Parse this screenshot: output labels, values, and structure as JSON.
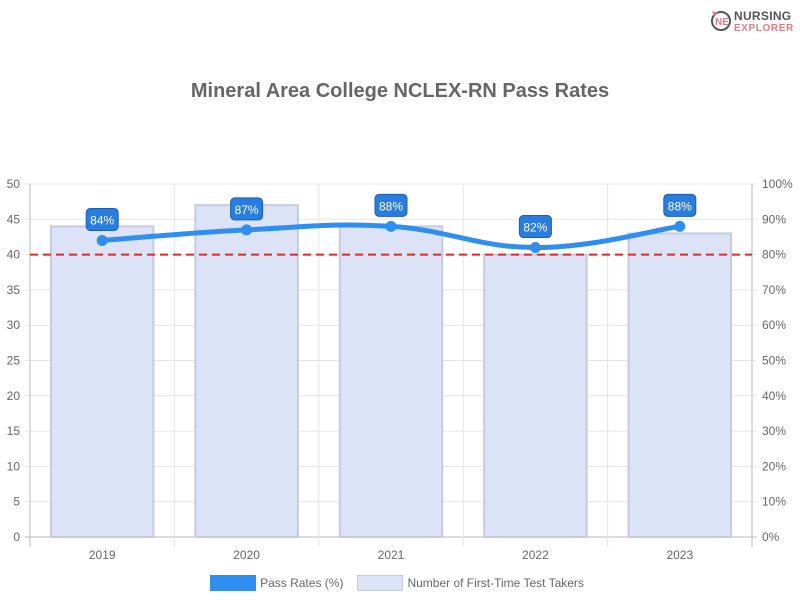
{
  "logo": {
    "line1": "NURSING",
    "line2": "EXPLORER"
  },
  "chart_data": {
    "type": "bar+line",
    "title": "Mineral Area College NCLEX-RN Pass Rates",
    "categories": [
      "2019",
      "2020",
      "2021",
      "2022",
      "2023"
    ],
    "series": [
      {
        "name": "Pass Rates (%)",
        "type": "line",
        "axis": "right",
        "values": [
          84,
          87,
          88,
          82,
          88
        ],
        "color": "#2f8ff0"
      },
      {
        "name": "Number of First-Time Test Takers",
        "type": "bar",
        "axis": "left",
        "values": [
          44,
          47,
          44,
          40,
          43
        ],
        "color": "#dce3f7"
      }
    ],
    "left_axis": {
      "ylim": [
        0,
        50
      ],
      "ticks": [
        "0",
        "5",
        "10",
        "15",
        "20",
        "25",
        "30",
        "35",
        "40",
        "45",
        "50"
      ]
    },
    "right_axis": {
      "ylim": [
        0,
        100
      ],
      "ticks": [
        "0%",
        "10%",
        "20%",
        "30%",
        "40%",
        "50%",
        "60%",
        "70%",
        "80%",
        "90%",
        "100%"
      ]
    },
    "reference_line": {
      "value_percent": 80,
      "color": "#ee2222",
      "style": "dashed"
    },
    "data_labels": [
      "84%",
      "87%",
      "88%",
      "82%",
      "88%"
    ],
    "grid": true,
    "legend_position": "bottom"
  }
}
